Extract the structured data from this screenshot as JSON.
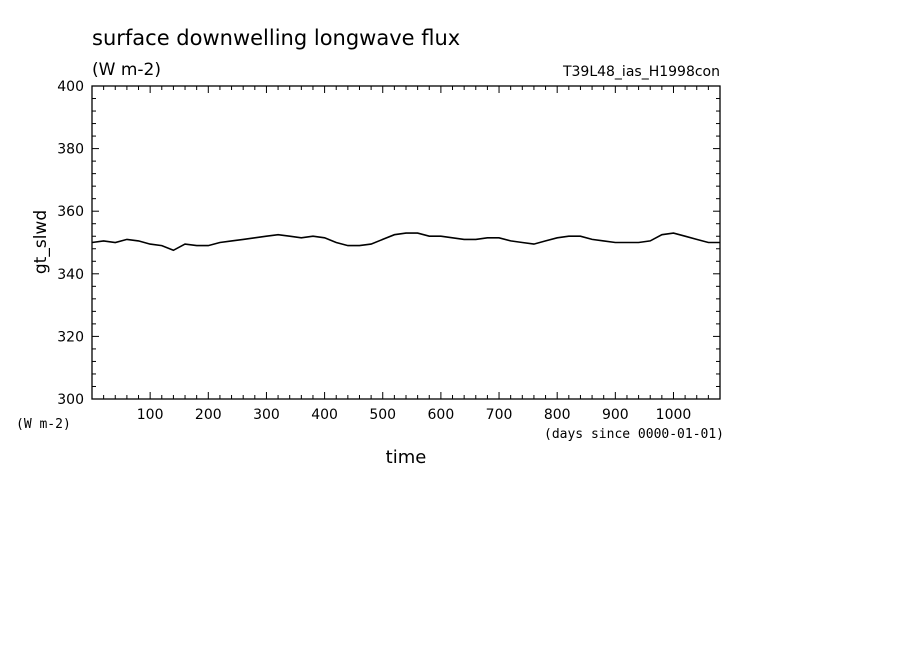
{
  "chart_data": {
    "type": "line",
    "title": "surface downwelling longwave flux",
    "units": "(W m-2)",
    "run_id": "T39L48_ias_H1998con",
    "ylabel": "gt_slwd",
    "y_units_label": "(W m-2)",
    "xlabel": "time",
    "x_units_label": "(days since 0000-01-01)",
    "xlim": [
      0,
      1080
    ],
    "ylim": [
      300,
      400
    ],
    "x_ticks": [
      100,
      200,
      300,
      400,
      500,
      600,
      700,
      800,
      900,
      1000
    ],
    "x_tick_labels": [
      "100",
      "200",
      "300",
      "400",
      "500",
      "600",
      "700",
      "800",
      "900",
      "1000"
    ],
    "y_ticks": [
      300,
      320,
      340,
      360,
      380,
      400
    ],
    "y_tick_labels": [
      "300",
      "320",
      "340",
      "360",
      "380",
      "400"
    ],
    "series": [
      {
        "x": [
          0,
          20,
          40,
          60,
          80,
          100,
          120,
          140,
          160,
          180,
          200,
          220,
          240,
          260,
          280,
          300,
          320,
          340,
          360,
          380,
          400,
          420,
          440,
          460,
          480,
          500,
          520,
          540,
          560,
          580,
          600,
          620,
          640,
          660,
          680,
          700,
          720,
          740,
          760,
          780,
          800,
          820,
          840,
          860,
          880,
          900,
          920,
          940,
          960,
          980,
          1000,
          1020,
          1040,
          1060,
          1080
        ],
        "values": [
          350,
          350.5,
          350,
          351,
          350.5,
          349.5,
          349,
          347.5,
          349.5,
          349,
          349,
          350,
          350.5,
          351,
          351.5,
          352,
          352.5,
          352,
          351.5,
          352,
          351.5,
          350,
          349,
          349,
          349.5,
          351,
          352.5,
          353,
          353,
          352,
          352,
          351.5,
          351,
          351,
          351.5,
          351.5,
          350.5,
          350,
          349.5,
          350.5,
          351.5,
          352,
          352,
          351,
          350.5,
          350,
          350,
          350,
          350.5,
          352.5,
          353,
          352,
          351,
          350,
          350
        ]
      }
    ]
  }
}
